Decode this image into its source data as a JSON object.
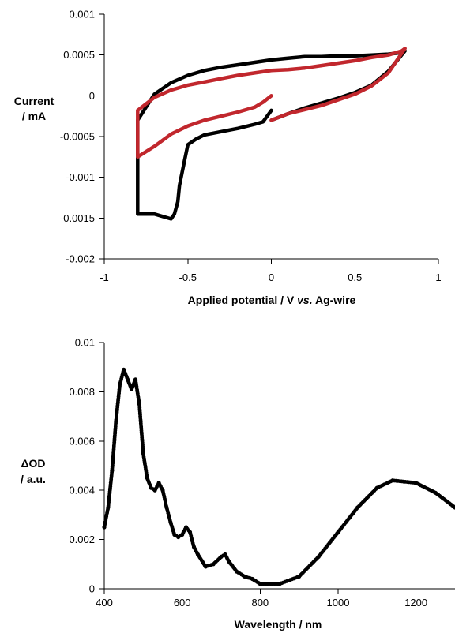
{
  "chart_data": [
    {
      "type": "line",
      "xlabel_main": "Applied potential / V ",
      "xlabel_italic": "vs.",
      "xlabel_tail": " Ag-wire",
      "ylabel_line1": "Current",
      "ylabel_line2": "/ mA",
      "xlim": [
        -1,
        1
      ],
      "ylim": [
        -0.002,
        0.001
      ],
      "xticks": [
        {
          "v": -1,
          "label": "-1"
        },
        {
          "v": -0.5,
          "label": "-0.5"
        },
        {
          "v": 0,
          "label": "0"
        },
        {
          "v": 0.5,
          "label": "0.5"
        },
        {
          "v": 1,
          "label": "1"
        }
      ],
      "yticks": [
        {
          "v": 0.001,
          "label": "0.001"
        },
        {
          "v": 0.0005,
          "label": "0.0005"
        },
        {
          "v": 0,
          "label": "0"
        },
        {
          "v": -0.0005,
          "label": "-0.0005"
        },
        {
          "v": -0.001,
          "label": "-0.001"
        },
        {
          "v": -0.0015,
          "label": "-0.0015"
        },
        {
          "v": -0.002,
          "label": "-0.002"
        }
      ],
      "grid": false,
      "legend": "none",
      "series": [
        {
          "color": "#000000",
          "x": [
            0,
            0.1,
            0.2,
            0.3,
            0.4,
            0.5,
            0.6,
            0.7,
            0.8,
            0.78,
            0.7,
            0.6,
            0.5,
            0.4,
            0.3,
            0.2,
            0.1,
            0,
            -0.1,
            -0.2,
            -0.3,
            -0.4,
            -0.5,
            -0.6,
            -0.7,
            -0.8,
            -0.8,
            -0.7,
            -0.65,
            -0.6,
            -0.58,
            -0.56,
            -0.55,
            -0.52,
            -0.5,
            -0.45,
            -0.4,
            -0.3,
            -0.2,
            -0.1,
            -0.05,
            0
          ],
          "y": [
            -0.0003,
            -0.00022,
            -0.00015,
            -9e-05,
            -3e-05,
            4e-05,
            0.00013,
            0.0003,
            0.00055,
            0.00053,
            0.00051,
            0.0005,
            0.00049,
            0.00049,
            0.00048,
            0.00048,
            0.00046,
            0.00044,
            0.00041,
            0.00038,
            0.00035,
            0.00031,
            0.00025,
            0.00016,
            2e-05,
            -0.0003,
            -0.00145,
            -0.00145,
            -0.00148,
            -0.00151,
            -0.00145,
            -0.0013,
            -0.0011,
            -0.0008,
            -0.0006,
            -0.00053,
            -0.00048,
            -0.00044,
            -0.0004,
            -0.00035,
            -0.00032,
            -0.00018
          ]
        },
        {
          "color": "#c1272d",
          "x": [
            0,
            0.1,
            0.2,
            0.3,
            0.4,
            0.5,
            0.6,
            0.7,
            0.8,
            0.78,
            0.7,
            0.6,
            0.5,
            0.4,
            0.3,
            0.2,
            0.1,
            0,
            -0.1,
            -0.2,
            -0.3,
            -0.4,
            -0.5,
            -0.6,
            -0.7,
            -0.8,
            -0.8,
            -0.7,
            -0.6,
            -0.5,
            -0.4,
            -0.3,
            -0.2,
            -0.1,
            -0.05,
            0
          ],
          "y": [
            -0.0003,
            -0.00022,
            -0.00017,
            -0.00012,
            -5e-05,
            2e-05,
            0.00012,
            0.00028,
            0.00058,
            0.00055,
            0.0005,
            0.00047,
            0.00043,
            0.0004,
            0.00037,
            0.00034,
            0.00032,
            0.00031,
            0.00028,
            0.00025,
            0.00021,
            0.00017,
            0.00013,
            7e-05,
            -2e-05,
            -0.00018,
            -0.00075,
            -0.00062,
            -0.00047,
            -0.00037,
            -0.0003,
            -0.00025,
            -0.0002,
            -0.00014,
            -8e-05,
            0
          ]
        }
      ]
    },
    {
      "type": "scatter",
      "xlabel": "Wavelength / nm",
      "ylabel_line1": "ΔOD",
      "ylabel_line2": "/ a.u.",
      "xlim": [
        400,
        1300
      ],
      "ylim": [
        0,
        0.01
      ],
      "xticks": [
        {
          "v": 400,
          "label": "400"
        },
        {
          "v": 600,
          "label": "600"
        },
        {
          "v": 800,
          "label": "800"
        },
        {
          "v": 1000,
          "label": "1000"
        },
        {
          "v": 1200,
          "label": "1200"
        }
      ],
      "yticks": [
        {
          "v": 0,
          "label": "0"
        },
        {
          "v": 0.002,
          "label": "0.002"
        },
        {
          "v": 0.004,
          "label": "0.004"
        },
        {
          "v": 0.006,
          "label": "0.006"
        },
        {
          "v": 0.008,
          "label": "0.008"
        },
        {
          "v": 0.01,
          "label": "0.01"
        }
      ],
      "grid": false,
      "legend": "none",
      "series": [
        {
          "color": "#000000",
          "x": [
            400,
            410,
            420,
            430,
            440,
            450,
            460,
            470,
            480,
            490,
            500,
            510,
            520,
            530,
            540,
            550,
            560,
            570,
            580,
            590,
            600,
            610,
            620,
            630,
            640,
            660,
            680,
            700,
            710,
            720,
            740,
            760,
            780,
            800,
            850,
            900,
            950,
            1000,
            1050,
            1100,
            1140,
            1200,
            1250,
            1300
          ],
          "y": [
            0.0025,
            0.0033,
            0.0048,
            0.0068,
            0.0083,
            0.0089,
            0.0085,
            0.0081,
            0.0085,
            0.0075,
            0.0055,
            0.0045,
            0.0041,
            0.004,
            0.0043,
            0.004,
            0.0033,
            0.0027,
            0.0022,
            0.0021,
            0.0022,
            0.0025,
            0.0023,
            0.0017,
            0.0014,
            0.0009,
            0.001,
            0.0013,
            0.0014,
            0.0011,
            0.0007,
            0.0005,
            0.0004,
            0.0002,
            0.0002,
            0.0005,
            0.0013,
            0.0023,
            0.0033,
            0.0041,
            0.0044,
            0.0043,
            0.0039,
            0.0033
          ]
        }
      ]
    }
  ]
}
